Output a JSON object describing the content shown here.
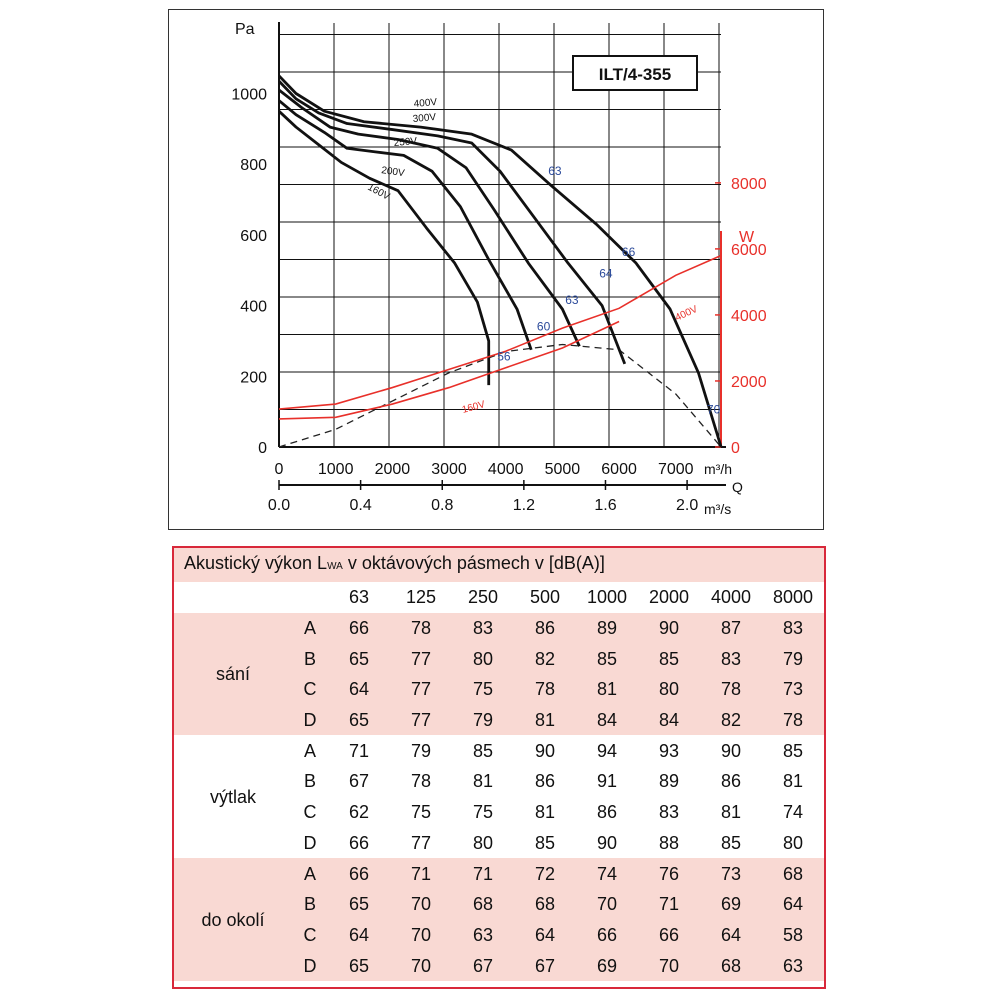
{
  "chart_data": {
    "type": "line",
    "title": "ILT/4-355",
    "y_left_label": "Pa",
    "y_right_label": "W",
    "x_label_top": "m³/h",
    "x_label_q": "Q",
    "x_label_bottom": "m³/s",
    "x_ticks_m3h": [
      "0",
      "1000",
      "2000",
      "3000",
      "4000",
      "5000",
      "6000",
      "7000"
    ],
    "x_ticks_m3s": [
      "0.0",
      "0.4",
      "0.8",
      "1.2",
      "1.6",
      "2.0"
    ],
    "y_ticks_pa": [
      "0",
      "200",
      "400",
      "600",
      "800",
      "1000"
    ],
    "y_ticks_w": [
      "0",
      "2000",
      "4000",
      "6000",
      "8000"
    ],
    "xlim": [
      0,
      7800
    ],
    "ylim": [
      0,
      1060
    ],
    "colors": {
      "pressure": "#111111",
      "power": "#e8302a",
      "noise_label": "#2b4a9a",
      "right_axis": "#e8302a"
    },
    "pressure_series": [
      {
        "name": "400V",
        "points": [
          [
            0,
            1050
          ],
          [
            300,
            1000
          ],
          [
            800,
            950
          ],
          [
            1500,
            920
          ],
          [
            2500,
            905
          ],
          [
            3400,
            885
          ],
          [
            4100,
            840
          ],
          [
            4800,
            740
          ],
          [
            5600,
            630
          ],
          [
            6300,
            520
          ],
          [
            6900,
            390
          ],
          [
            7400,
            210
          ],
          [
            7800,
            0
          ]
        ]
      },
      {
        "name": "300V",
        "points": [
          [
            0,
            1035
          ],
          [
            300,
            985
          ],
          [
            700,
            945
          ],
          [
            1200,
            915
          ],
          [
            2000,
            898
          ],
          [
            2800,
            880
          ],
          [
            3400,
            860
          ],
          [
            3900,
            780
          ],
          [
            4500,
            650
          ],
          [
            5100,
            520
          ],
          [
            5700,
            400
          ],
          [
            6100,
            235
          ]
        ]
      },
      {
        "name": "250V",
        "points": [
          [
            0,
            1010
          ],
          [
            400,
            960
          ],
          [
            900,
            905
          ],
          [
            1400,
            885
          ],
          [
            2100,
            870
          ],
          [
            2800,
            845
          ],
          [
            3300,
            790
          ],
          [
            3800,
            670
          ],
          [
            4400,
            520
          ],
          [
            5000,
            390
          ],
          [
            5300,
            285
          ]
        ]
      },
      {
        "name": "200V",
        "points": [
          [
            0,
            980
          ],
          [
            300,
            940
          ],
          [
            800,
            890
          ],
          [
            1200,
            845
          ],
          [
            1700,
            835
          ],
          [
            2200,
            825
          ],
          [
            2700,
            780
          ],
          [
            3200,
            680
          ],
          [
            3700,
            530
          ],
          [
            4200,
            390
          ],
          [
            4450,
            275
          ]
        ]
      },
      {
        "name": "160V",
        "points": [
          [
            0,
            950
          ],
          [
            300,
            905
          ],
          [
            700,
            855
          ],
          [
            1100,
            805
          ],
          [
            1600,
            760
          ],
          [
            2100,
            725
          ],
          [
            2600,
            620
          ],
          [
            3100,
            520
          ],
          [
            3500,
            410
          ],
          [
            3700,
            300
          ],
          [
            3700,
            175
          ]
        ]
      }
    ],
    "series_labels": [
      "400V",
      "300V",
      "250V",
      "200V",
      "160V"
    ],
    "system_curve": [
      [
        0,
        0
      ],
      [
        1000,
        50
      ],
      [
        2000,
        130
      ],
      [
        3000,
        210
      ],
      [
        4000,
        270
      ],
      [
        5000,
        290
      ],
      [
        6000,
        275
      ],
      [
        7000,
        150
      ],
      [
        7800,
        0
      ]
    ],
    "power_series": [
      {
        "name": "400V",
        "points": [
          [
            0,
            1150
          ],
          [
            1000,
            1300
          ],
          [
            2000,
            1800
          ],
          [
            3000,
            2350
          ],
          [
            4000,
            2900
          ],
          [
            5000,
            3600
          ],
          [
            6000,
            4200
          ],
          [
            7000,
            5200
          ],
          [
            7800,
            5800
          ]
        ]
      },
      {
        "name": "160V",
        "points": [
          [
            0,
            850
          ],
          [
            1000,
            900
          ],
          [
            2000,
            1300
          ],
          [
            3000,
            1800
          ],
          [
            4000,
            2400
          ],
          [
            5000,
            3000
          ],
          [
            6000,
            3800
          ]
        ]
      }
    ],
    "noise_labels": [
      {
        "text": "63",
        "x": 4750,
        "y": 770
      },
      {
        "text": "66",
        "x": 6050,
        "y": 540
      },
      {
        "text": "64",
        "x": 5650,
        "y": 480
      },
      {
        "text": "63",
        "x": 5050,
        "y": 405
      },
      {
        "text": "60",
        "x": 4550,
        "y": 330
      },
      {
        "text": "56",
        "x": 3850,
        "y": 245
      },
      {
        "text": "70",
        "x": 7550,
        "y": 95
      }
    ]
  },
  "table": {
    "title_prefix": "Akustický výkon L",
    "title_sub": "WA",
    "title_suffix": " v oktávových pásmech v [dB(A)]",
    "bands": [
      "63",
      "125",
      "250",
      "500",
      "1000",
      "2000",
      "4000",
      "8000"
    ],
    "groups": [
      {
        "name": "sání",
        "rows": [
          {
            "label": "A",
            "values": [
              "66",
              "78",
              "83",
              "86",
              "89",
              "90",
              "87",
              "83"
            ]
          },
          {
            "label": "B",
            "values": [
              "65",
              "77",
              "80",
              "82",
              "85",
              "85",
              "83",
              "79"
            ]
          },
          {
            "label": "C",
            "values": [
              "64",
              "77",
              "75",
              "78",
              "81",
              "80",
              "78",
              "73"
            ]
          },
          {
            "label": "D",
            "values": [
              "65",
              "77",
              "79",
              "81",
              "84",
              "84",
              "82",
              "78"
            ]
          }
        ]
      },
      {
        "name": "výtlak",
        "rows": [
          {
            "label": "A",
            "values": [
              "71",
              "79",
              "85",
              "90",
              "94",
              "93",
              "90",
              "85"
            ]
          },
          {
            "label": "B",
            "values": [
              "67",
              "78",
              "81",
              "86",
              "91",
              "89",
              "86",
              "81"
            ]
          },
          {
            "label": "C",
            "values": [
              "62",
              "75",
              "75",
              "81",
              "86",
              "83",
              "81",
              "74"
            ]
          },
          {
            "label": "D",
            "values": [
              "66",
              "77",
              "80",
              "85",
              "90",
              "88",
              "85",
              "80"
            ]
          }
        ]
      },
      {
        "name": "do okolí",
        "rows": [
          {
            "label": "A",
            "values": [
              "66",
              "71",
              "71",
              "72",
              "74",
              "76",
              "73",
              "68"
            ]
          },
          {
            "label": "B",
            "values": [
              "65",
              "70",
              "68",
              "68",
              "70",
              "71",
              "69",
              "64"
            ]
          },
          {
            "label": "C",
            "values": [
              "64",
              "70",
              "63",
              "64",
              "66",
              "66",
              "64",
              "58"
            ]
          },
          {
            "label": "D",
            "values": [
              "65",
              "70",
              "67",
              "67",
              "69",
              "70",
              "68",
              "63"
            ]
          }
        ]
      }
    ]
  }
}
